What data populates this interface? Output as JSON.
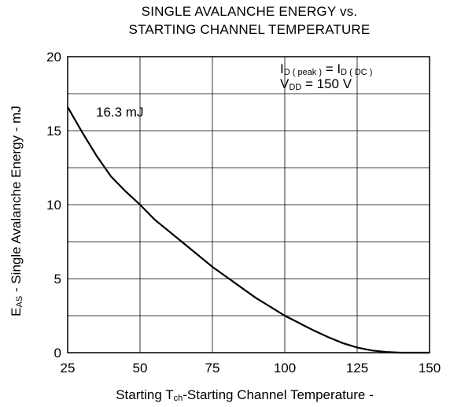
{
  "chart_data": {
    "type": "line",
    "title": "SINGLE AVALANCHE ENERGY vs.",
    "subtitle": "STARTING CHANNEL TEMPERATURE",
    "xlabel": {
      "pre": "Starting T",
      "sub": "ch",
      "post": "-Starting Channel Temperature -"
    },
    "ylabel": {
      "pre": "E",
      "sub": "AS",
      "post": " - Single Avalanche Energy - mJ"
    },
    "xlim": [
      25,
      150
    ],
    "ylim": [
      0,
      20
    ],
    "xticks": [
      25,
      50,
      75,
      100,
      125,
      150
    ],
    "yticks": [
      0,
      5,
      10,
      15,
      20
    ],
    "x_grid": [
      25,
      50,
      75,
      100,
      125,
      150
    ],
    "y_grid": [
      0,
      2.5,
      5,
      7.5,
      10,
      12.5,
      15,
      17.5,
      20
    ],
    "grid": true,
    "series": [
      {
        "x": [
          25,
          30,
          35,
          40,
          45,
          50,
          55,
          60,
          65,
          70,
          75,
          80,
          85,
          90,
          95,
          100,
          105,
          110,
          115,
          120,
          125,
          130,
          135,
          140,
          145,
          150
        ],
        "y": [
          16.6,
          14.9,
          13.3,
          11.9,
          10.9,
          10.0,
          9.0,
          8.2,
          7.4,
          6.6,
          5.8,
          5.1,
          4.4,
          3.7,
          3.1,
          2.5,
          2.0,
          1.5,
          1.05,
          0.65,
          0.35,
          0.15,
          0.05,
          0.0,
          0.0,
          0.0
        ]
      }
    ],
    "annotation": "16.3 mJ",
    "conditions": {
      "line1": {
        "a": "I",
        "a_sub": "D ( peak )",
        "eq": " = I",
        "b_sub": "D ( DC )"
      },
      "line2": {
        "a": "V",
        "a_sub": "DD",
        "eq": " = 150 V"
      }
    }
  }
}
